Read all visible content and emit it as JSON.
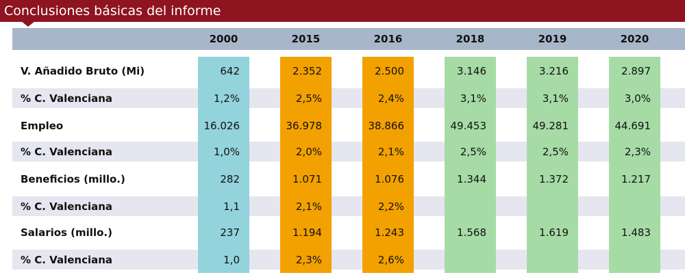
{
  "title": "Conclusiones básicas del informe",
  "colors": {
    "title_bar": "#8e1420",
    "header_band": "#a8b6ca",
    "stripe": "#e6e6f0",
    "col_2000": "#93d3dc",
    "col_2015_2016": "#f2a100",
    "col_2018_2020": "#a6dba6"
  },
  "table": {
    "columns": [
      "2000",
      "2015",
      "2016",
      "2018",
      "2019",
      "2020"
    ],
    "rows": [
      {
        "label": "V. Añadido Bruto (Mi)",
        "values": [
          "642",
          "2.352",
          "2.500",
          "3.146",
          "3.216",
          "2.897"
        ]
      },
      {
        "label": "% C. Valenciana",
        "values": [
          "1,2%",
          "2,5%",
          "2,4%",
          "3,1%",
          "3,1%",
          "3,0%"
        ]
      },
      {
        "label": "Empleo",
        "values": [
          "16.026",
          "36.978",
          "38.866",
          "49.453",
          "49.281",
          "44.691"
        ]
      },
      {
        "label": "% C. Valenciana",
        "values": [
          "1,0%",
          "2,0%",
          "2,1%",
          "2,5%",
          "2,5%",
          "2,3%"
        ]
      },
      {
        "label": "Beneficios (millo.)",
        "values": [
          "282",
          "1.071",
          "1.076",
          "1.344",
          "1.372",
          "1.217"
        ]
      },
      {
        "label": "% C. Valenciana",
        "values": [
          "1,1",
          "2,1%",
          "2,2%",
          "",
          "",
          ""
        ]
      },
      {
        "label": "Salarios  (millo.)",
        "values": [
          "237",
          "1.194",
          "1.243",
          "1.568",
          "1.619",
          "1.483"
        ]
      },
      {
        "label": "% C. Valenciana",
        "values": [
          "1,0",
          "2,3%",
          "2,6%",
          "",
          "",
          ""
        ]
      }
    ]
  }
}
